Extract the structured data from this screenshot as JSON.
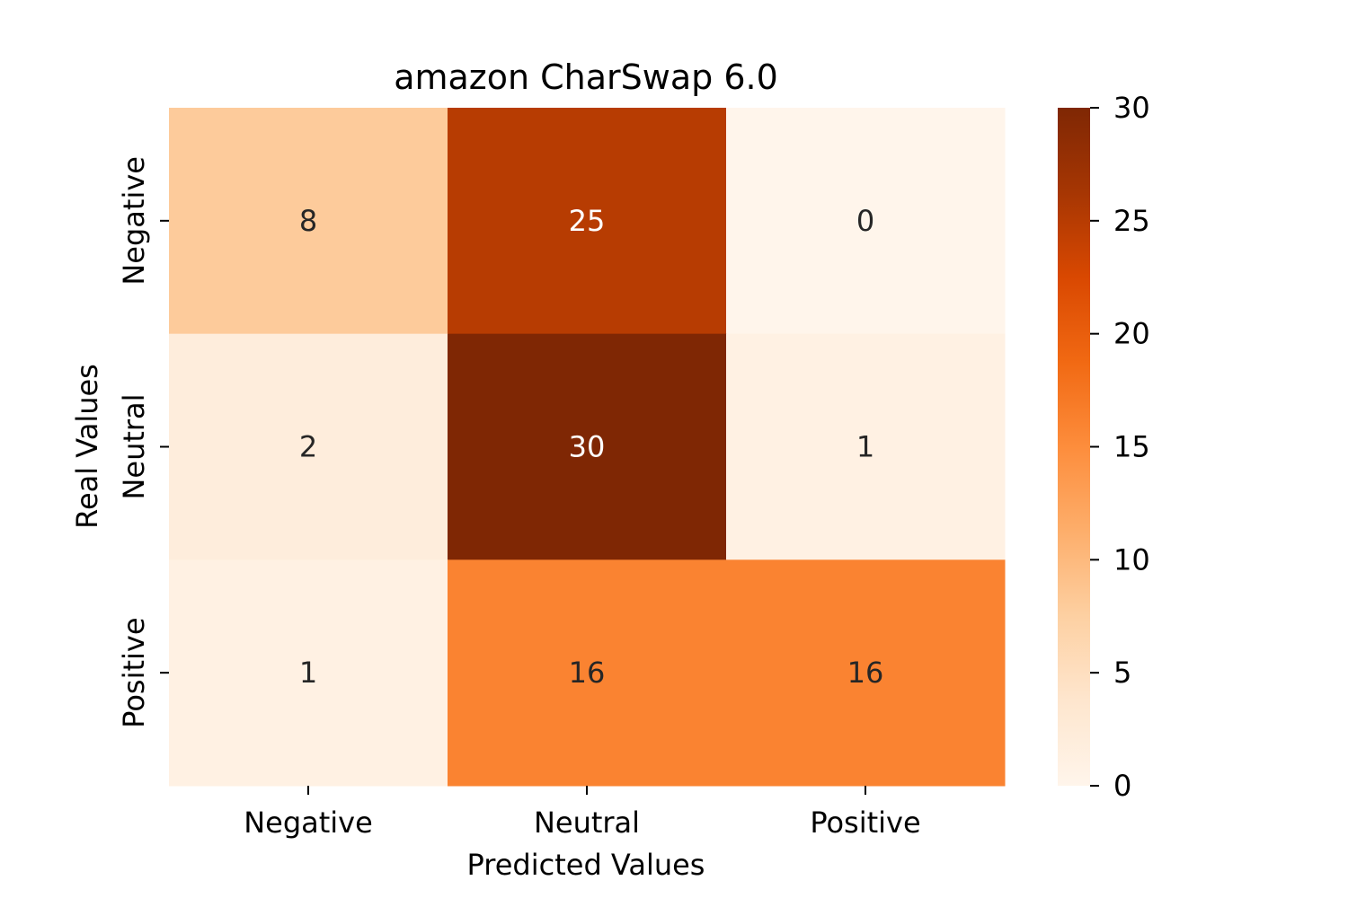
{
  "chart_data": {
    "type": "heatmap",
    "title": "amazon CharSwap 6.0",
    "xlabel": "Predicted Values",
    "ylabel": "Real Values",
    "x_categories": [
      "Negative",
      "Neutral",
      "Positive"
    ],
    "y_categories": [
      "Negative",
      "Neutral",
      "Positive"
    ],
    "values": [
      [
        8,
        25,
        0
      ],
      [
        2,
        30,
        1
      ],
      [
        1,
        16,
        16
      ]
    ],
    "colorbar": {
      "min": 0,
      "max": 30,
      "ticks": [
        0,
        5,
        10,
        15,
        20,
        25,
        30
      ],
      "colormap": "Oranges",
      "colors": [
        "#fff5eb",
        "#fee6ce",
        "#fdd0a2",
        "#fdae6b",
        "#fd8d3c",
        "#f16913",
        "#d94801",
        "#a63603",
        "#7f2704"
      ]
    },
    "grid": false
  }
}
